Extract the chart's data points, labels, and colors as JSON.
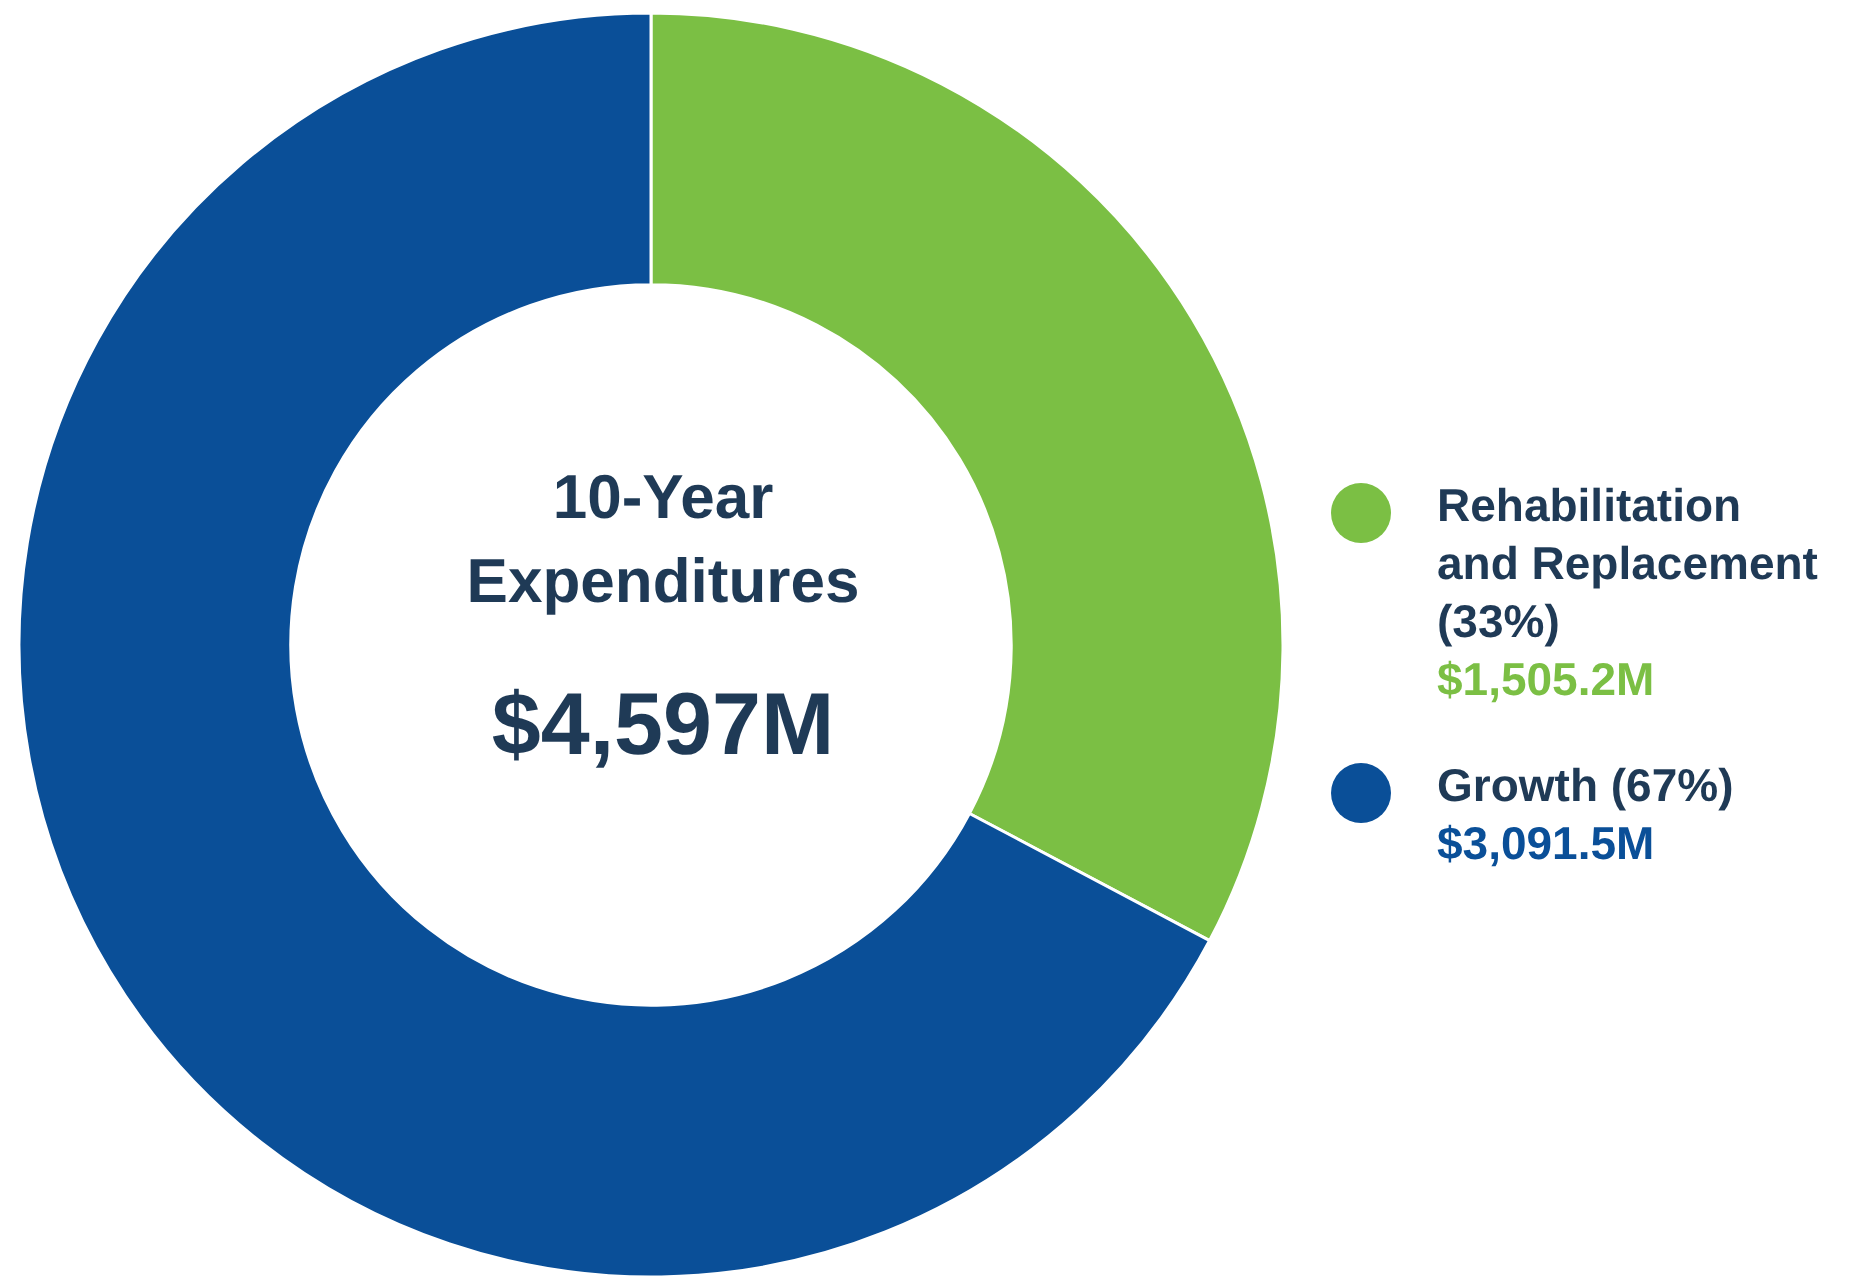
{
  "chart_data": {
    "type": "donut",
    "title": "10-Year Expenditures",
    "subtitle": "$4,597M",
    "categories": [
      "Rehabilitation and Replacement (33%)",
      "Growth (67%)"
    ],
    "values": [
      1505.2,
      3091.5
    ],
    "colors": [
      "#7bbf44",
      "#0a4f98"
    ],
    "value_labels": [
      "$1,505.2M",
      "$3,091.5M"
    ],
    "legend": "right"
  }
}
